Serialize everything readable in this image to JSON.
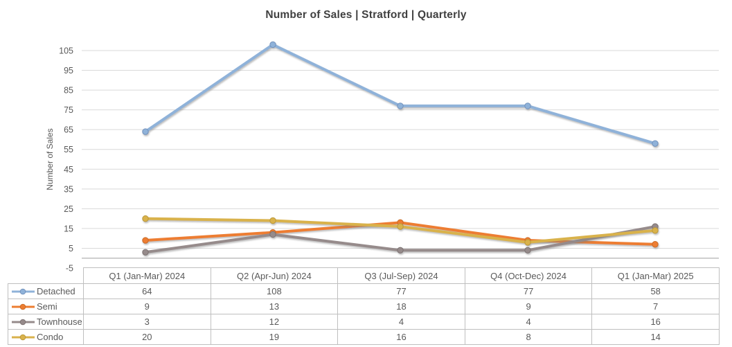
{
  "chart_data": {
    "type": "line",
    "title": "Number of Sales | Stratford | Quarterly",
    "xlabel": "",
    "ylabel": "Number of Sales",
    "categories": [
      "Q1 (Jan-Mar) 2024",
      "Q2 (Apr-Jun) 2024",
      "Q3 (Jul-Sep) 2024",
      "Q4 (Oct-Dec) 2024",
      "Q1 (Jan-Mar) 2025"
    ],
    "series": [
      {
        "name": "Detached",
        "values": [
          64,
          108,
          77,
          77,
          58
        ],
        "color": "#8FB2D9",
        "marker_edge": "#7191BC"
      },
      {
        "name": "Semi",
        "values": [
          9,
          13,
          18,
          9,
          7
        ],
        "color": "#ED7D31",
        "marker_edge": "#C96A25"
      },
      {
        "name": "Townhouse",
        "values": [
          3,
          12,
          4,
          4,
          16
        ],
        "color": "#968B8B",
        "marker_edge": "#7C7272"
      },
      {
        "name": "Condo",
        "values": [
          20,
          19,
          16,
          8,
          14
        ],
        "color": "#D9B24C",
        "marker_edge": "#BB9838"
      }
    ],
    "ylim": [
      -5,
      105
    ],
    "ytick_step": 10,
    "grid": true,
    "legend_position": "data-table-left",
    "style": {
      "title_color": "#404040",
      "axis_text_color": "#595959",
      "gridline_color": "#D9D9D9",
      "zero_axis_color": "#B3B3B3",
      "table_border_color": "#BFBFBF",
      "background": "#FFFFFF"
    }
  }
}
